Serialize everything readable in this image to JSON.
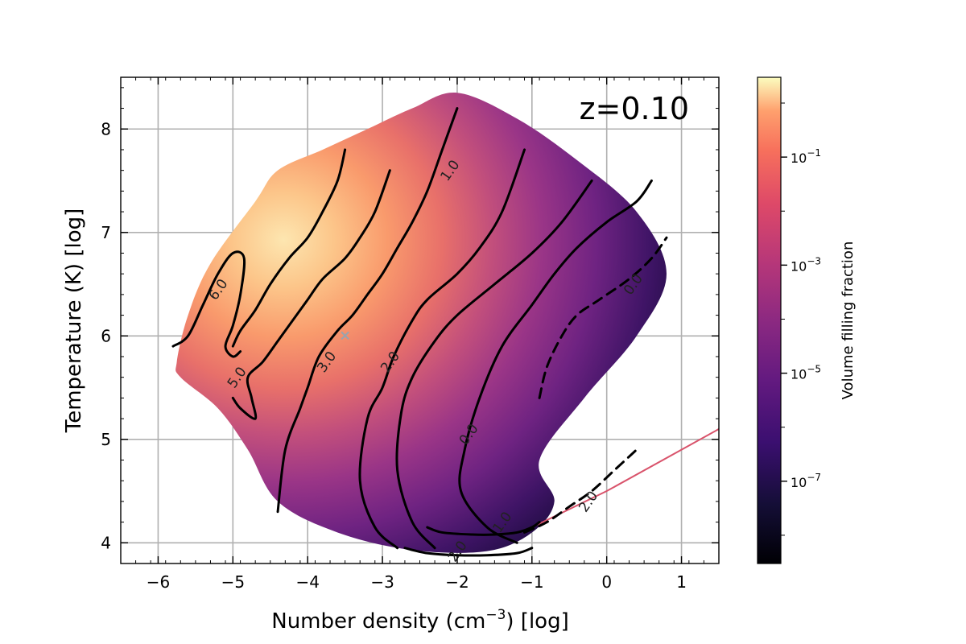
{
  "chart_data": {
    "type": "heatmap",
    "title": "",
    "annotation": "z=0.10",
    "xlabel": "Number density (cm",
    "xlabel_sup": "−3",
    "xlabel_suffix": ") [log]",
    "ylabel": "Temperature (K) [log]",
    "xlim": [
      -6.5,
      1.5
    ],
    "ylim": [
      3.8,
      8.5
    ],
    "xticks": [
      -6,
      -5,
      -4,
      -3,
      -2,
      -1,
      0,
      1
    ],
    "xtick_labels": [
      "−6",
      "−5",
      "−4",
      "−3",
      "−2",
      "−1",
      "0",
      "1"
    ],
    "yticks": [
      4,
      5,
      6,
      7,
      8
    ],
    "ytick_labels": [
      "4",
      "5",
      "6",
      "7",
      "8"
    ],
    "grid": true,
    "colormap": "magma",
    "colorbar": {
      "label": "Volume filling fraction",
      "scale": "log",
      "range": [
        3e-09,
        3
      ],
      "ticks": [
        {
          "value": 0.1,
          "base": "10",
          "exp": "−1"
        },
        {
          "value": 0.001,
          "base": "10",
          "exp": "−3"
        },
        {
          "value": 1e-05,
          "base": "10",
          "exp": "−5"
        },
        {
          "value": 1e-07,
          "base": "10",
          "exp": "−7"
        }
      ]
    },
    "marker": {
      "x": -3.5,
      "y": 6.0,
      "symbol": "×",
      "color": "#9aa3ad"
    },
    "density_region": {
      "description_points": [
        [
          -5.75,
          5.75
        ],
        [
          -5.6,
          6.2
        ],
        [
          -5.3,
          6.7
        ],
        [
          -4.7,
          7.3
        ],
        [
          -4.4,
          7.6
        ],
        [
          -3.8,
          7.8
        ],
        [
          -3.2,
          8.0
        ],
        [
          -2.6,
          8.2
        ],
        [
          -2.0,
          8.35
        ],
        [
          -1.2,
          8.1
        ],
        [
          -0.4,
          7.7
        ],
        [
          0.4,
          7.2
        ],
        [
          0.8,
          6.6
        ],
        [
          0.4,
          6.0
        ],
        [
          -0.3,
          5.4
        ],
        [
          -0.9,
          4.8
        ],
        [
          -0.7,
          4.4
        ],
        [
          -1.0,
          4.1
        ],
        [
          -1.6,
          3.92
        ],
        [
          -2.6,
          3.93
        ],
        [
          -3.6,
          4.1
        ],
        [
          -4.4,
          4.4
        ],
        [
          -4.8,
          4.9
        ],
        [
          -5.2,
          5.3
        ],
        [
          -5.7,
          5.6
        ]
      ],
      "peak": {
        "x": -4.3,
        "y": 6.6,
        "value": 0.5
      },
      "tail": [
        [
          -1.0,
          4.15
        ],
        [
          0.0,
          4.5
        ],
        [
          1.5,
          5.1
        ]
      ]
    },
    "contours": [
      {
        "label": "6.0",
        "label_at": [
          -5.2,
          6.45
        ],
        "dashed": false,
        "x": [
          -5.8,
          -5.6,
          -5.4,
          -5.2,
          -5.0,
          -4.85,
          -4.9,
          -5.0,
          -5.1,
          -5.0,
          -4.9
        ],
        "y": [
          5.9,
          6.0,
          6.3,
          6.6,
          6.8,
          6.75,
          6.4,
          6.1,
          5.9,
          5.8,
          5.85
        ]
      },
      {
        "label": "5.0",
        "label_at": [
          -4.95,
          5.6
        ],
        "dashed": false,
        "x": [
          -5.0,
          -4.9,
          -4.7,
          -4.5,
          -4.25,
          -4.0,
          -3.8,
          -3.6,
          -3.5
        ],
        "y": [
          5.9,
          6.05,
          6.25,
          6.5,
          6.75,
          6.95,
          7.2,
          7.5,
          7.8
        ]
      },
      {
        "label": "5.0b",
        "label_at": null,
        "dashed": false,
        "x": [
          -5.0,
          -4.9,
          -4.7,
          -4.75,
          -4.8,
          -4.6,
          -4.4,
          -4.2,
          -4.0,
          -3.8,
          -3.5,
          -3.3,
          -3.1,
          -2.9
        ],
        "y": [
          5.4,
          5.3,
          5.2,
          5.4,
          5.6,
          5.75,
          5.95,
          6.15,
          6.35,
          6.55,
          6.75,
          6.95,
          7.2,
          7.6
        ]
      },
      {
        "label": "3.0",
        "label_at": [
          -3.75,
          5.75
        ],
        "dashed": false,
        "x": [
          -4.4,
          -4.3,
          -4.1,
          -4.0,
          -3.85,
          -3.6,
          -3.4,
          -3.2,
          -3.0,
          -2.8,
          -2.6,
          -2.4,
          -2.2,
          -2.0
        ],
        "y": [
          4.3,
          4.9,
          5.3,
          5.5,
          5.8,
          6.05,
          6.2,
          6.4,
          6.6,
          6.85,
          7.1,
          7.4,
          7.8,
          8.2
        ]
      },
      {
        "label": "2.0",
        "label_at": [
          -2.9,
          5.75
        ],
        "dashed": false,
        "x": [
          -2.8,
          -3.1,
          -3.3,
          -3.2,
          -3.0,
          -2.85,
          -2.6,
          -2.4,
          -2.0,
          -1.7,
          -1.4,
          -1.1
        ],
        "y": [
          3.95,
          4.15,
          4.6,
          5.2,
          5.5,
          5.8,
          6.15,
          6.35,
          6.6,
          6.85,
          7.2,
          7.8
        ]
      },
      {
        "label": "1.0",
        "label_at": [
          -2.1,
          7.6
        ],
        "dashed": false,
        "x": [
          -2.3,
          -2.6,
          -2.8,
          -2.75,
          -2.6,
          -2.3,
          -2.0,
          -1.5,
          -1.0,
          -0.6,
          -0.2
        ],
        "y": [
          3.95,
          4.2,
          4.7,
          5.25,
          5.6,
          5.95,
          6.2,
          6.5,
          6.8,
          7.1,
          7.5
        ]
      },
      {
        "label": "0.0",
        "label_at": [
          -1.85,
          5.05
        ],
        "dashed": false,
        "x": [
          -1.2,
          -1.6,
          -1.95,
          -1.9,
          -1.7,
          -1.4,
          -1.0,
          -0.7,
          -0.4,
          0.0,
          0.4,
          0.6
        ],
        "y": [
          4.0,
          4.15,
          4.5,
          4.9,
          5.4,
          5.9,
          6.3,
          6.6,
          6.85,
          7.1,
          7.3,
          7.5
        ]
      },
      {
        "label": "0.0",
        "label_at": [
          0.35,
          6.5
        ],
        "dashed": true,
        "x": [
          -0.9,
          -0.8,
          -0.6,
          -0.4,
          -0.1,
          0.3,
          0.6,
          0.8
        ],
        "y": [
          5.4,
          5.7,
          6.0,
          6.2,
          6.35,
          6.55,
          6.75,
          6.95
        ]
      },
      {
        "label": "1.0",
        "label_at": [
          -1.4,
          4.2
        ],
        "dashed": false,
        "x": [
          -2.4,
          -2.2,
          -1.8,
          -1.5,
          -1.2,
          -1.0,
          -0.9
        ],
        "y": [
          4.15,
          4.1,
          4.08,
          4.08,
          4.1,
          4.15,
          4.2
        ]
      },
      {
        "label": "2.0",
        "label_at": [
          -2.0,
          3.92
        ],
        "dashed": false,
        "x": [
          -2.7,
          -2.4,
          -2.0,
          -1.6,
          -1.2,
          -1.0
        ],
        "y": [
          3.95,
          3.9,
          3.88,
          3.88,
          3.9,
          3.95
        ]
      },
      {
        "label": "2.0",
        "label_at": [
          -0.25,
          4.4
        ],
        "dashed": true,
        "x": [
          -1.1,
          -0.8,
          -0.5,
          -0.2,
          0.1,
          0.4
        ],
        "y": [
          4.1,
          4.2,
          4.35,
          4.5,
          4.7,
          4.9
        ]
      }
    ]
  }
}
